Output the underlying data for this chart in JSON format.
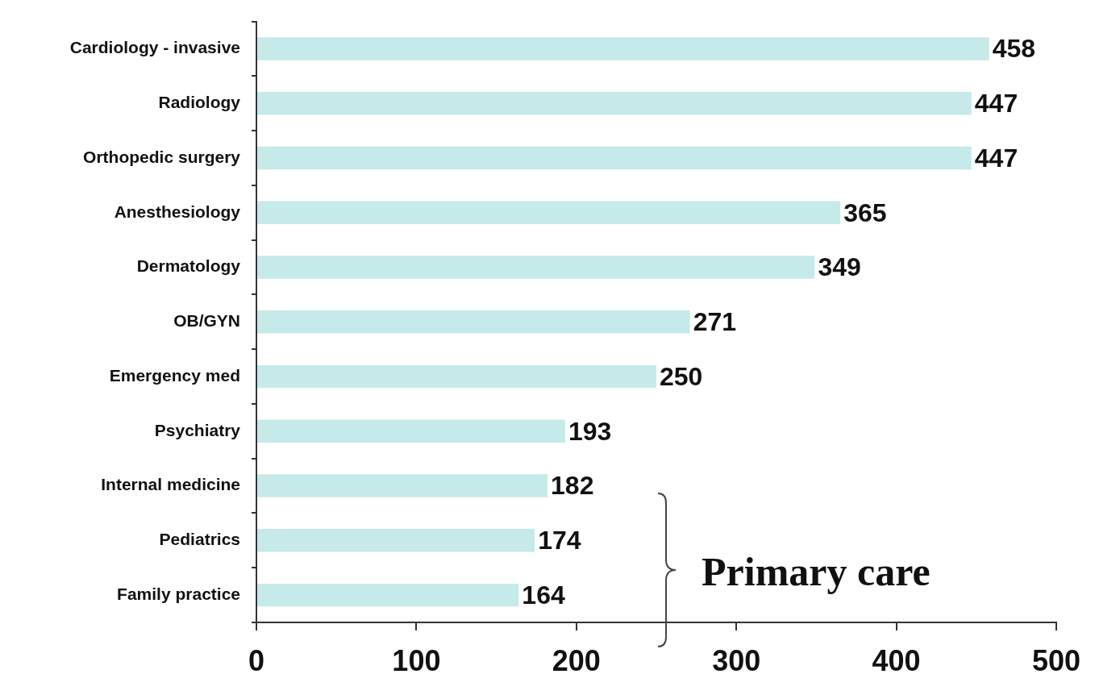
{
  "chart_data": {
    "type": "bar",
    "orientation": "horizontal",
    "categories": [
      "Cardiology - invasive",
      "Radiology",
      "Orthopedic surgery",
      "Anesthesiology",
      "Dermatology",
      "OB/GYN",
      "Emergency med",
      "Psychiatry",
      "Internal medicine",
      "Pediatrics",
      "Family practice"
    ],
    "values": [
      458,
      447,
      447,
      365,
      349,
      271,
      250,
      193,
      182,
      174,
      164
    ],
    "color": "#c6e9e9",
    "xlim": [
      0,
      500
    ],
    "xticks": [
      0,
      100,
      200,
      300,
      400,
      500
    ],
    "data_labels": true,
    "legend": false,
    "annotations": [
      "Primary care"
    ]
  }
}
